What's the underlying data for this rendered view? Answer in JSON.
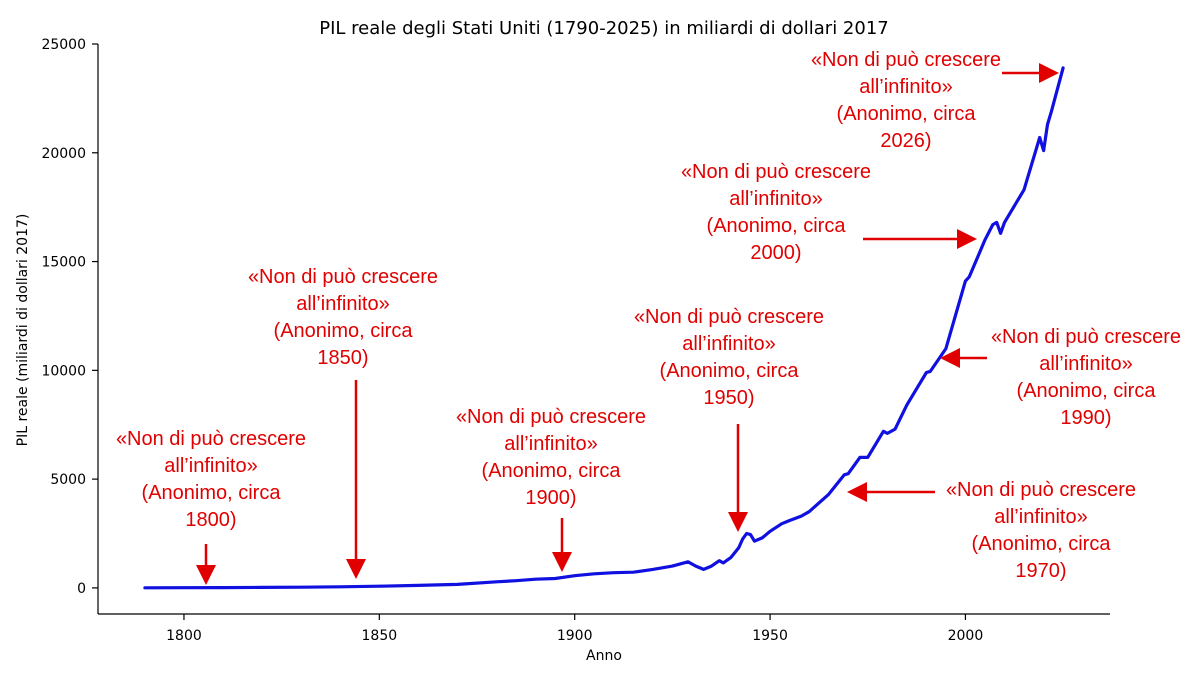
{
  "chart_data": {
    "type": "line",
    "title": "PIL reale degli Stati Uniti (1790-2025) in miliardi di dollari 2017",
    "xlabel": "Anno",
    "ylabel": "PIL reale (miliardi di dollari 2017)",
    "xlim": [
      1778,
      2037
    ],
    "ylim": [
      -1200,
      25000
    ],
    "xticks": [
      1800,
      1850,
      1900,
      1950,
      2000
    ],
    "yticks": [
      0,
      5000,
      10000,
      15000,
      20000,
      25000
    ],
    "grid": false,
    "line_color": "#1010e0",
    "annotation_color": "#e00000",
    "series": [
      {
        "x": [
          1790,
          1800,
          1810,
          1820,
          1830,
          1840,
          1850,
          1860,
          1870,
          1880,
          1885,
          1890,
          1895,
          1900,
          1905,
          1910,
          1915,
          1920,
          1925,
          1929,
          1931,
          1933,
          1935,
          1937,
          1938,
          1940,
          1942,
          1943,
          1944,
          1945,
          1946,
          1948,
          1950,
          1953,
          1955,
          1958,
          1960,
          1965,
          1969,
          1970,
          1973,
          1975,
          1979,
          1980,
          1982,
          1985,
          1990,
          1991,
          1995,
          2000,
          2001,
          2005,
          2007,
          2008,
          2009,
          2010,
          2015,
          2019,
          2020,
          2021,
          2022,
          2025
        ],
        "values": [
          6,
          10,
          15,
          22,
          33,
          50,
          80,
          115,
          160,
          280,
          330,
          400,
          430,
          560,
          650,
          700,
          720,
          850,
          1000,
          1200,
          1000,
          850,
          1000,
          1250,
          1150,
          1400,
          1850,
          2250,
          2500,
          2450,
          2150,
          2300,
          2600,
          2950,
          3100,
          3300,
          3500,
          4300,
          5200,
          5250,
          6000,
          6000,
          7200,
          7100,
          7300,
          8400,
          9900,
          9950,
          11000,
          14100,
          14300,
          16000,
          16700,
          16800,
          16300,
          16800,
          18300,
          20700,
          20100,
          21300,
          21900,
          23900
        ]
      }
    ],
    "annotations": [
      {
        "lines": [
          "«Non di può crescere",
          "all’infinito»",
          "(Anonimo, circa",
          "1800)"
        ],
        "arrow": "down",
        "year": 1806,
        "pos": "low-left"
      },
      {
        "lines": [
          "«Non di può crescere",
          "all’infinito»",
          "(Anonimo, circa",
          "1850)"
        ],
        "arrow": "down",
        "year": 1844,
        "pos": "mid"
      },
      {
        "lines": [
          "«Non di può crescere",
          "all’infinito»",
          "(Anonimo, circa",
          "1900)"
        ],
        "arrow": "down",
        "year": 1897,
        "pos": "low-mid"
      },
      {
        "lines": [
          "«Non di può crescere",
          "all’infinito»",
          "(Anonimo, circa",
          "1950)"
        ],
        "arrow": "down",
        "year": 1942,
        "pos": "mid"
      },
      {
        "lines": [
          "«Non di può crescere",
          "all’infinito»",
          "(Anonimo, circa",
          "1970)"
        ],
        "arrow": "left",
        "year": 1970,
        "pos": "right-low"
      },
      {
        "lines": [
          "«Non di può crescere",
          "all’infinito»",
          "(Anonimo, circa",
          "1990)"
        ],
        "arrow": "left",
        "year": 1993,
        "pos": "right-mid"
      },
      {
        "lines": [
          "«Non di può crescere",
          "all’infinito»",
          "(Anonimo, circa",
          "2000)"
        ],
        "arrow": "right",
        "year": 2002,
        "pos": "upper"
      },
      {
        "lines": [
          "«Non di può crescere",
          "all’infinito»",
          "(Anonimo, circa",
          "2026)"
        ],
        "arrow": "right",
        "year": 2023,
        "pos": "top"
      }
    ]
  }
}
